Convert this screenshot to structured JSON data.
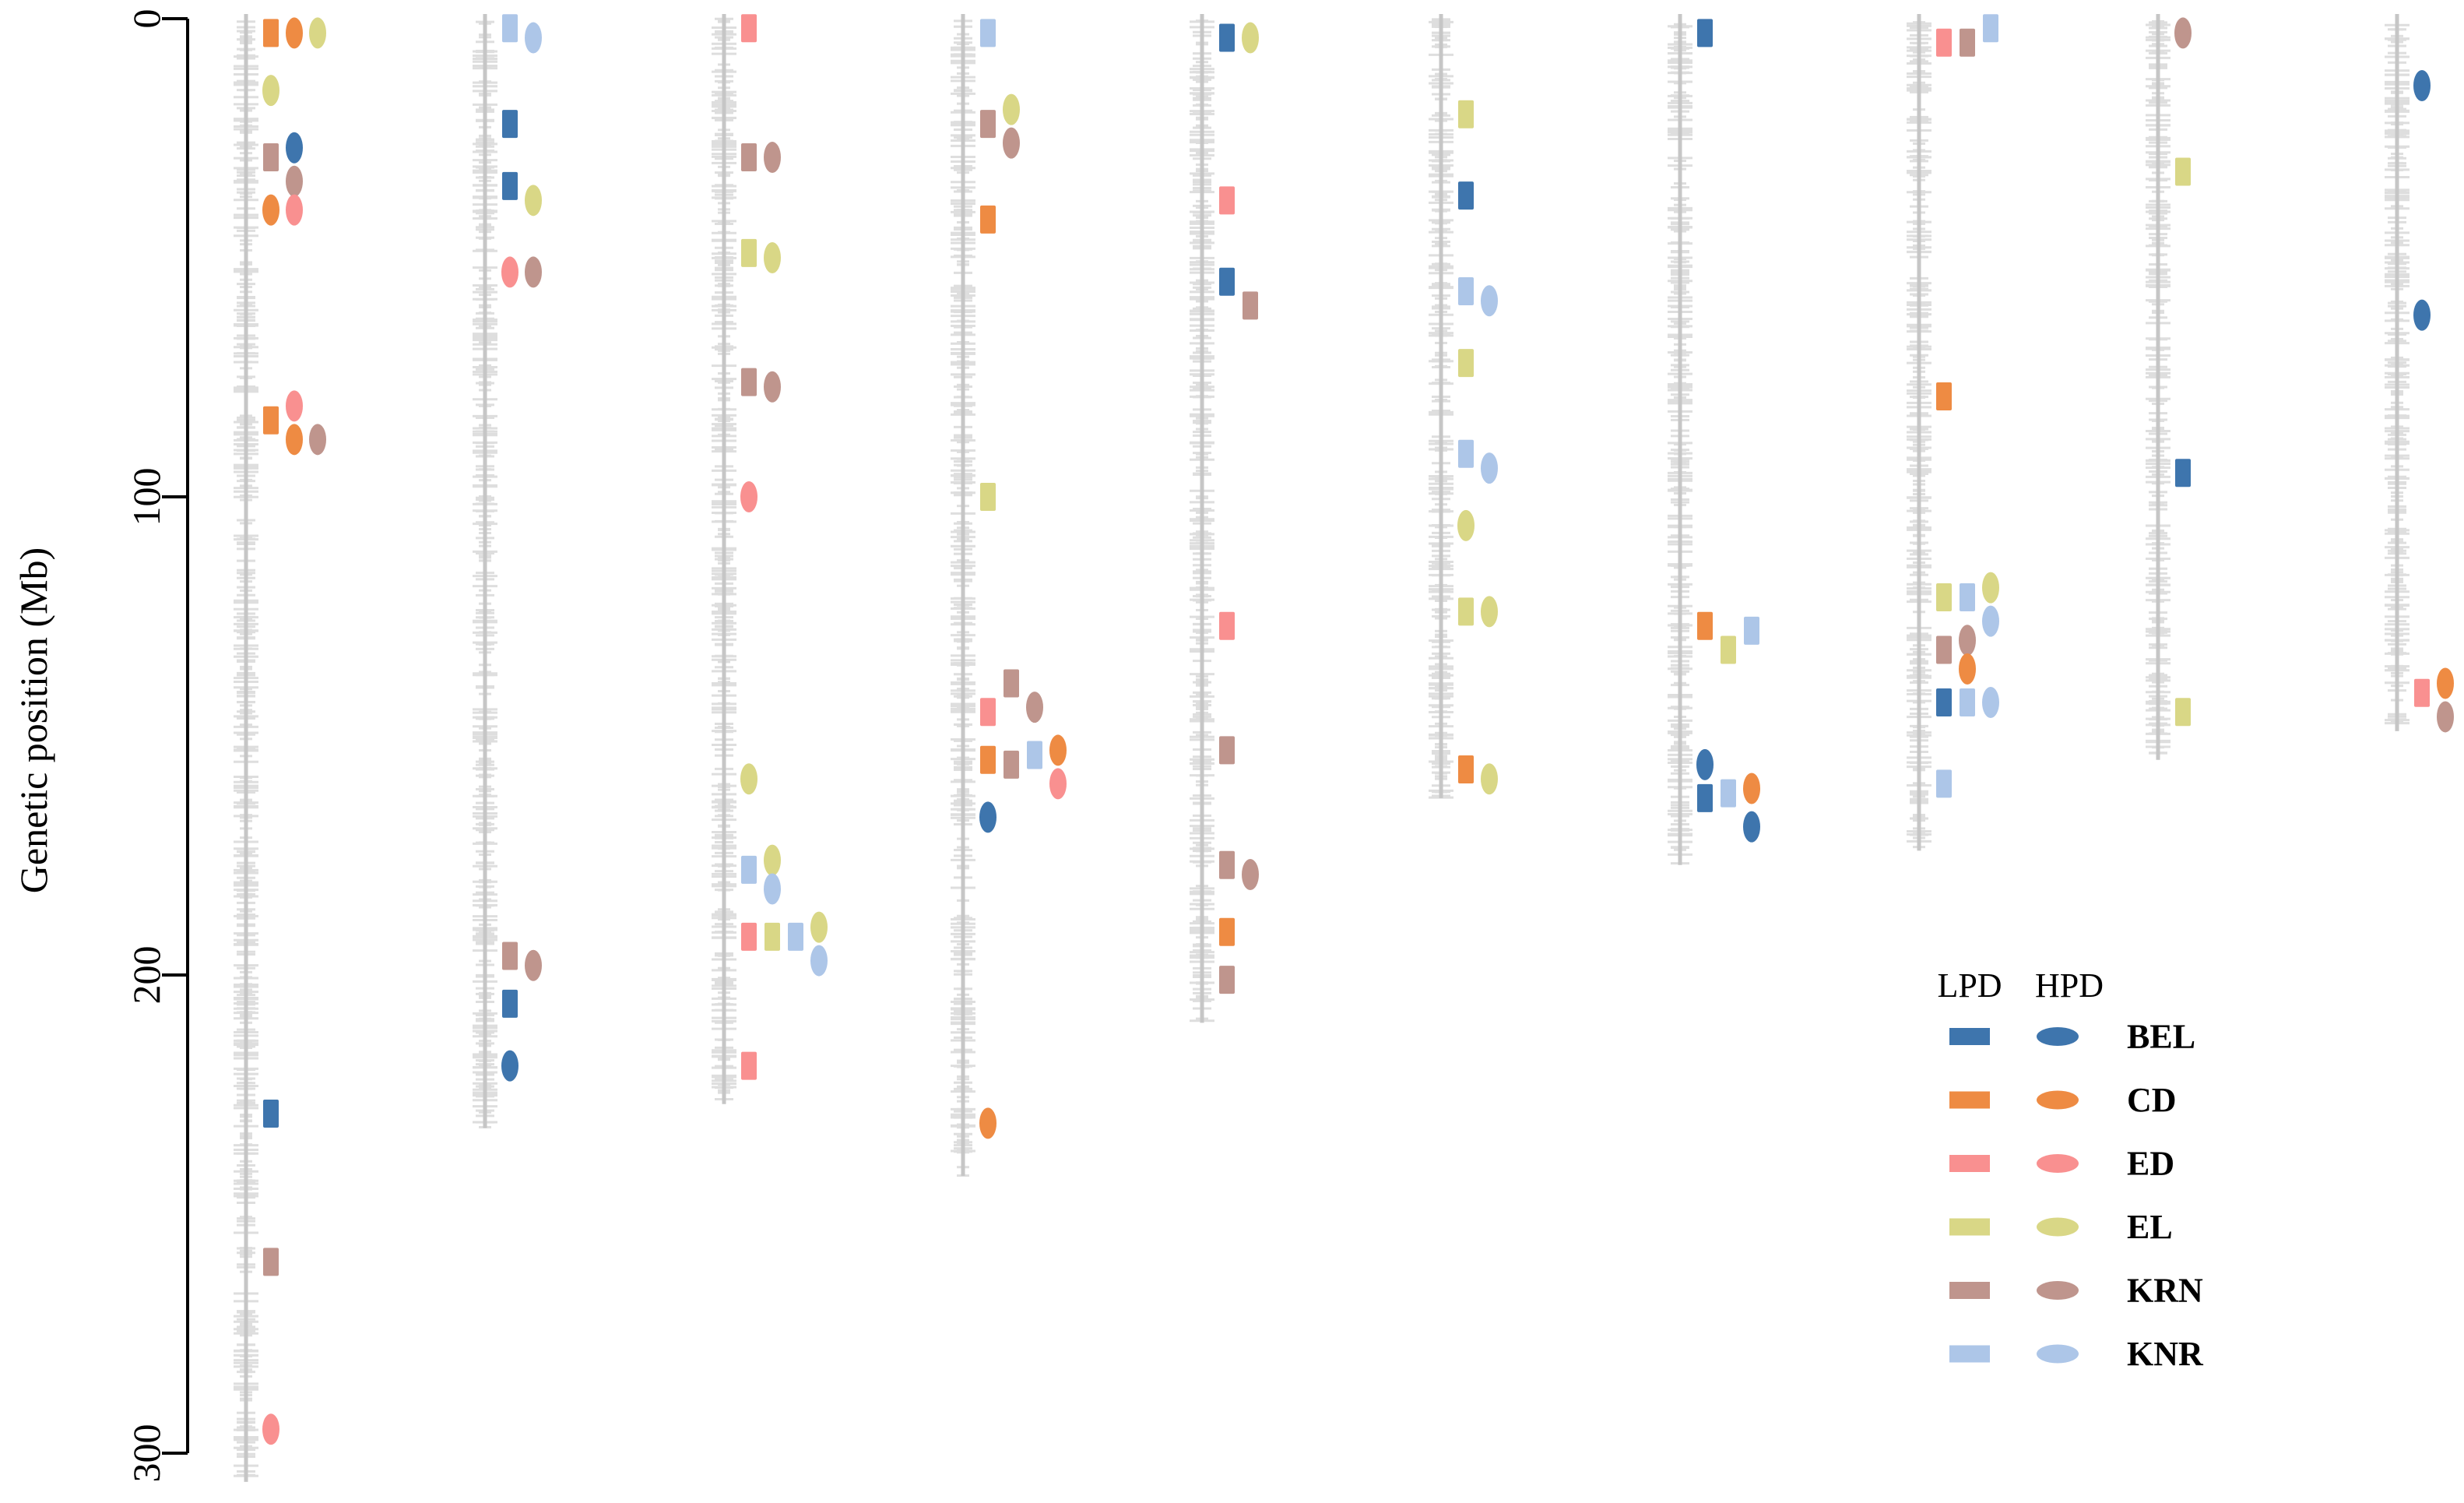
{
  "chart_data": {
    "type": "scatter",
    "title": "",
    "ylabel": "Genetic position (Mb)",
    "xlabel": "",
    "ylim": [
      0,
      300
    ],
    "y_inverted": true,
    "yticks": [
      0,
      100,
      200,
      300
    ],
    "legend": {
      "placement": "bottom-right",
      "header_low": "LPD",
      "header_high": "HPD"
    },
    "traits": [
      {
        "name": "BEL",
        "color": "#3e75ad"
      },
      {
        "name": "CD",
        "color": "#ee8b43"
      },
      {
        "name": "ED",
        "color": "#f99090"
      },
      {
        "name": "EL",
        "color": "#d9d786"
      },
      {
        "name": "KRN",
        "color": "#bf958d"
      },
      {
        "name": "KNR",
        "color": "#adc6e8"
      }
    ],
    "chromosomes": [
      {
        "length": 306,
        "qtls": [
          {
            "trait": "CD",
            "env": "LPD",
            "pos": 3,
            "slot": 0
          },
          {
            "trait": "CD",
            "env": "HPD",
            "pos": 3,
            "slot": 1
          },
          {
            "trait": "EL",
            "env": "HPD",
            "pos": 3,
            "slot": 2
          },
          {
            "trait": "EL",
            "env": "HPD",
            "pos": 15,
            "slot": 0
          },
          {
            "trait": "BEL",
            "env": "HPD",
            "pos": 27,
            "slot": 1
          },
          {
            "trait": "KRN",
            "env": "LPD",
            "pos": 29,
            "slot": 0
          },
          {
            "trait": "KRN",
            "env": "HPD",
            "pos": 34,
            "slot": 1
          },
          {
            "trait": "CD",
            "env": "HPD",
            "pos": 40,
            "slot": 0
          },
          {
            "trait": "ED",
            "env": "HPD",
            "pos": 40,
            "slot": 1
          },
          {
            "trait": "CD",
            "env": "LPD",
            "pos": 84,
            "slot": 0
          },
          {
            "trait": "ED",
            "env": "HPD",
            "pos": 81,
            "slot": 1
          },
          {
            "trait": "CD",
            "env": "HPD",
            "pos": 88,
            "slot": 1
          },
          {
            "trait": "KRN",
            "env": "HPD",
            "pos": 88,
            "slot": 2
          },
          {
            "trait": "BEL",
            "env": "LPD",
            "pos": 229,
            "slot": 0
          },
          {
            "trait": "KRN",
            "env": "LPD",
            "pos": 260,
            "slot": 0
          },
          {
            "trait": "ED",
            "env": "HPD",
            "pos": 295,
            "slot": 0
          }
        ]
      },
      {
        "length": 232,
        "qtls": [
          {
            "trait": "KNR",
            "env": "LPD",
            "pos": 2,
            "slot": 0
          },
          {
            "trait": "KNR",
            "env": "HPD",
            "pos": 4,
            "slot": 1
          },
          {
            "trait": "BEL",
            "env": "LPD",
            "pos": 22,
            "slot": 0
          },
          {
            "trait": "BEL",
            "env": "LPD",
            "pos": 35,
            "slot": 0
          },
          {
            "trait": "EL",
            "env": "HPD",
            "pos": 38,
            "slot": 1
          },
          {
            "trait": "ED",
            "env": "HPD",
            "pos": 53,
            "slot": 0
          },
          {
            "trait": "KRN",
            "env": "HPD",
            "pos": 53,
            "slot": 1
          },
          {
            "trait": "KRN",
            "env": "LPD",
            "pos": 196,
            "slot": 0
          },
          {
            "trait": "KRN",
            "env": "HPD",
            "pos": 198,
            "slot": 1
          },
          {
            "trait": "BEL",
            "env": "LPD",
            "pos": 206,
            "slot": 0
          },
          {
            "trait": "BEL",
            "env": "HPD",
            "pos": 219,
            "slot": 0
          }
        ]
      },
      {
        "length": 227,
        "qtls": [
          {
            "trait": "ED",
            "env": "LPD",
            "pos": 2,
            "slot": 0
          },
          {
            "trait": "KRN",
            "env": "LPD",
            "pos": 29,
            "slot": 0
          },
          {
            "trait": "KRN",
            "env": "HPD",
            "pos": 29,
            "slot": 1
          },
          {
            "trait": "EL",
            "env": "LPD",
            "pos": 49,
            "slot": 0
          },
          {
            "trait": "EL",
            "env": "HPD",
            "pos": 50,
            "slot": 1
          },
          {
            "trait": "KRN",
            "env": "LPD",
            "pos": 76,
            "slot": 0
          },
          {
            "trait": "KRN",
            "env": "HPD",
            "pos": 77,
            "slot": 1
          },
          {
            "trait": "ED",
            "env": "HPD",
            "pos": 100,
            "slot": 0
          },
          {
            "trait": "EL",
            "env": "HPD",
            "pos": 159,
            "slot": 0
          },
          {
            "trait": "EL",
            "env": "HPD",
            "pos": 176,
            "slot": 1
          },
          {
            "trait": "KNR",
            "env": "LPD",
            "pos": 178,
            "slot": 0
          },
          {
            "trait": "KNR",
            "env": "HPD",
            "pos": 182,
            "slot": 1
          },
          {
            "trait": "ED",
            "env": "LPD",
            "pos": 192,
            "slot": 0
          },
          {
            "trait": "EL",
            "env": "LPD",
            "pos": 192,
            "slot": 1
          },
          {
            "trait": "KNR",
            "env": "LPD",
            "pos": 192,
            "slot": 2
          },
          {
            "trait": "EL",
            "env": "HPD",
            "pos": 190,
            "slot": 3
          },
          {
            "trait": "KNR",
            "env": "HPD",
            "pos": 197,
            "slot": 3
          },
          {
            "trait": "ED",
            "env": "LPD",
            "pos": 219,
            "slot": 0
          }
        ]
      },
      {
        "length": 242,
        "qtls": [
          {
            "trait": "KNR",
            "env": "LPD",
            "pos": 3,
            "slot": 0
          },
          {
            "trait": "KRN",
            "env": "LPD",
            "pos": 22,
            "slot": 0
          },
          {
            "trait": "EL",
            "env": "HPD",
            "pos": 19,
            "slot": 1
          },
          {
            "trait": "KRN",
            "env": "HPD",
            "pos": 26,
            "slot": 1
          },
          {
            "trait": "CD",
            "env": "LPD",
            "pos": 42,
            "slot": 0
          },
          {
            "trait": "EL",
            "env": "LPD",
            "pos": 100,
            "slot": 0
          },
          {
            "trait": "KRN",
            "env": "LPD",
            "pos": 139,
            "slot": 1
          },
          {
            "trait": "KRN",
            "env": "HPD",
            "pos": 144,
            "slot": 2
          },
          {
            "trait": "ED",
            "env": "LPD",
            "pos": 145,
            "slot": 0
          },
          {
            "trait": "CD",
            "env": "LPD",
            "pos": 155,
            "slot": 0
          },
          {
            "trait": "KRN",
            "env": "LPD",
            "pos": 156,
            "slot": 1
          },
          {
            "trait": "KNR",
            "env": "LPD",
            "pos": 154,
            "slot": 2
          },
          {
            "trait": "CD",
            "env": "HPD",
            "pos": 153,
            "slot": 3
          },
          {
            "trait": "ED",
            "env": "HPD",
            "pos": 160,
            "slot": 3
          },
          {
            "trait": "BEL",
            "env": "HPD",
            "pos": 167,
            "slot": 0
          },
          {
            "trait": "CD",
            "env": "HPD",
            "pos": 231,
            "slot": 0
          }
        ]
      },
      {
        "length": 210,
        "qtls": [
          {
            "trait": "BEL",
            "env": "LPD",
            "pos": 4,
            "slot": 0
          },
          {
            "trait": "EL",
            "env": "HPD",
            "pos": 4,
            "slot": 1
          },
          {
            "trait": "ED",
            "env": "LPD",
            "pos": 38,
            "slot": 0
          },
          {
            "trait": "BEL",
            "env": "LPD",
            "pos": 55,
            "slot": 0
          },
          {
            "trait": "KRN",
            "env": "LPD",
            "pos": 60,
            "slot": 1
          },
          {
            "trait": "ED",
            "env": "LPD",
            "pos": 127,
            "slot": 0
          },
          {
            "trait": "KRN",
            "env": "LPD",
            "pos": 153,
            "slot": 0
          },
          {
            "trait": "KRN",
            "env": "LPD",
            "pos": 177,
            "slot": 0
          },
          {
            "trait": "KRN",
            "env": "HPD",
            "pos": 179,
            "slot": 1
          },
          {
            "trait": "CD",
            "env": "LPD",
            "pos": 191,
            "slot": 0
          },
          {
            "trait": "KRN",
            "env": "LPD",
            "pos": 201,
            "slot": 0
          }
        ]
      },
      {
        "length": 163,
        "qtls": [
          {
            "trait": "EL",
            "env": "LPD",
            "pos": 20,
            "slot": 0
          },
          {
            "trait": "BEL",
            "env": "LPD",
            "pos": 37,
            "slot": 0
          },
          {
            "trait": "KNR",
            "env": "LPD",
            "pos": 57,
            "slot": 0
          },
          {
            "trait": "KNR",
            "env": "HPD",
            "pos": 59,
            "slot": 1
          },
          {
            "trait": "EL",
            "env": "LPD",
            "pos": 72,
            "slot": 0
          },
          {
            "trait": "KNR",
            "env": "LPD",
            "pos": 91,
            "slot": 0
          },
          {
            "trait": "KNR",
            "env": "HPD",
            "pos": 94,
            "slot": 1
          },
          {
            "trait": "EL",
            "env": "HPD",
            "pos": 106,
            "slot": 0
          },
          {
            "trait": "EL",
            "env": "LPD",
            "pos": 124,
            "slot": 0
          },
          {
            "trait": "EL",
            "env": "HPD",
            "pos": 124,
            "slot": 1
          },
          {
            "trait": "CD",
            "env": "LPD",
            "pos": 157,
            "slot": 0
          },
          {
            "trait": "EL",
            "env": "HPD",
            "pos": 159,
            "slot": 1
          }
        ]
      },
      {
        "length": 177,
        "qtls": [
          {
            "trait": "BEL",
            "env": "LPD",
            "pos": 3,
            "slot": 0
          },
          {
            "trait": "CD",
            "env": "LPD",
            "pos": 127,
            "slot": 0
          },
          {
            "trait": "EL",
            "env": "LPD",
            "pos": 132,
            "slot": 1
          },
          {
            "trait": "KNR",
            "env": "LPD",
            "pos": 128,
            "slot": 2
          },
          {
            "trait": "BEL",
            "env": "HPD",
            "pos": 156,
            "slot": 0
          },
          {
            "trait": "BEL",
            "env": "LPD",
            "pos": 163,
            "slot": 0
          },
          {
            "trait": "KNR",
            "env": "LPD",
            "pos": 162,
            "slot": 1
          },
          {
            "trait": "CD",
            "env": "HPD",
            "pos": 161,
            "slot": 2
          },
          {
            "trait": "BEL",
            "env": "HPD",
            "pos": 169,
            "slot": 2
          }
        ]
      },
      {
        "length": 174,
        "qtls": [
          {
            "trait": "ED",
            "env": "LPD",
            "pos": 5,
            "slot": 0
          },
          {
            "trait": "KRN",
            "env": "LPD",
            "pos": 5,
            "slot": 1
          },
          {
            "trait": "KNR",
            "env": "LPD",
            "pos": 2,
            "slot": 2
          },
          {
            "trait": "CD",
            "env": "LPD",
            "pos": 79,
            "slot": 0
          },
          {
            "trait": "EL",
            "env": "LPD",
            "pos": 121,
            "slot": 0
          },
          {
            "trait": "KNR",
            "env": "LPD",
            "pos": 121,
            "slot": 1
          },
          {
            "trait": "EL",
            "env": "HPD",
            "pos": 119,
            "slot": 2
          },
          {
            "trait": "KNR",
            "env": "HPD",
            "pos": 126,
            "slot": 2
          },
          {
            "trait": "KRN",
            "env": "LPD",
            "pos": 132,
            "slot": 0
          },
          {
            "trait": "KRN",
            "env": "HPD",
            "pos": 130,
            "slot": 1
          },
          {
            "trait": "CD",
            "env": "HPD",
            "pos": 136,
            "slot": 1
          },
          {
            "trait": "BEL",
            "env": "LPD",
            "pos": 143,
            "slot": 0
          },
          {
            "trait": "KNR",
            "env": "LPD",
            "pos": 143,
            "slot": 1
          },
          {
            "trait": "KNR",
            "env": "HPD",
            "pos": 143,
            "slot": 2
          },
          {
            "trait": "KNR",
            "env": "LPD",
            "pos": 160,
            "slot": 0
          }
        ]
      },
      {
        "length": 155,
        "qtls": [
          {
            "trait": "KRN",
            "env": "HPD",
            "pos": 3,
            "slot": 0
          },
          {
            "trait": "EL",
            "env": "LPD",
            "pos": 32,
            "slot": 0
          },
          {
            "trait": "BEL",
            "env": "LPD",
            "pos": 95,
            "slot": 0
          },
          {
            "trait": "EL",
            "env": "LPD",
            "pos": 145,
            "slot": 0
          }
        ]
      },
      {
        "length": 149,
        "qtls": [
          {
            "trait": "BEL",
            "env": "HPD",
            "pos": 14,
            "slot": 0
          },
          {
            "trait": "BEL",
            "env": "HPD",
            "pos": 62,
            "slot": 0
          },
          {
            "trait": "ED",
            "env": "LPD",
            "pos": 141,
            "slot": 0
          },
          {
            "trait": "CD",
            "env": "HPD",
            "pos": 139,
            "slot": 1
          },
          {
            "trait": "KRN",
            "env": "HPD",
            "pos": 146,
            "slot": 1
          }
        ]
      }
    ]
  }
}
